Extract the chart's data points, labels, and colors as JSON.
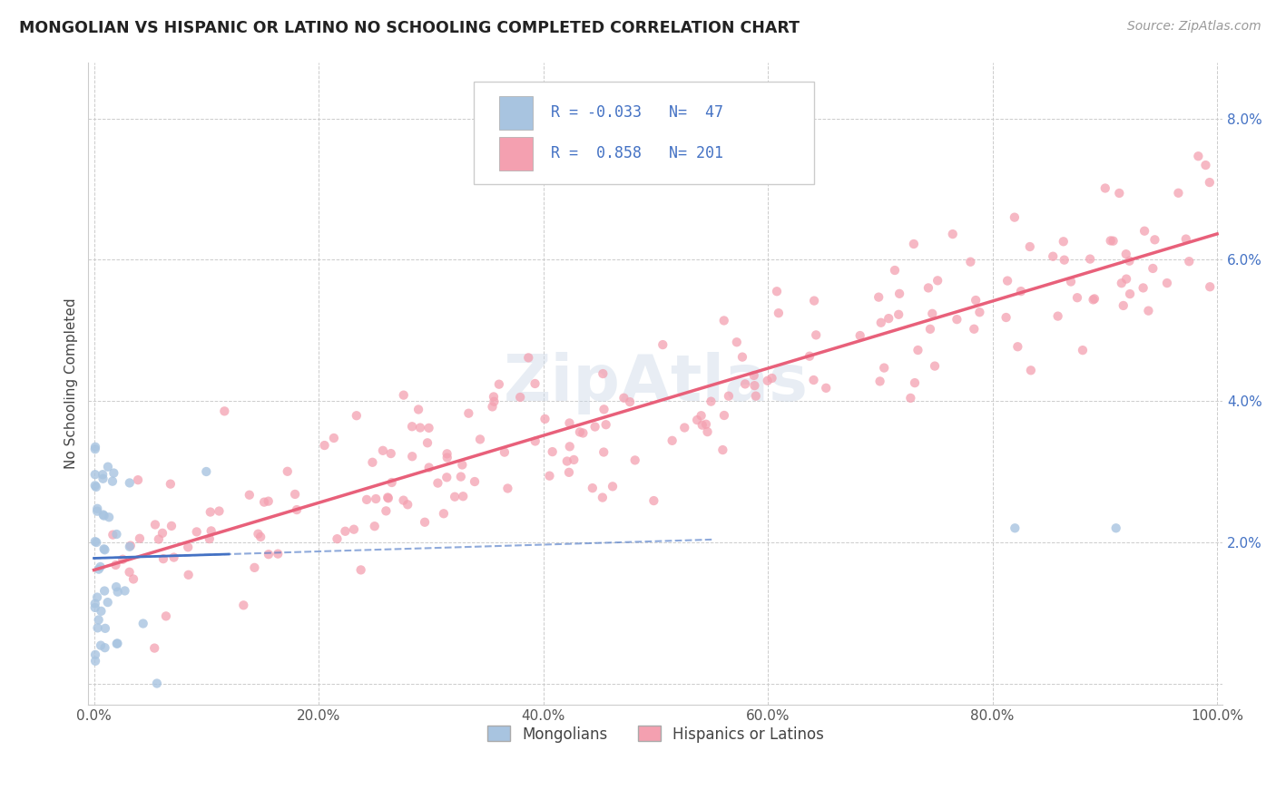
{
  "title": "MONGOLIAN VS HISPANIC OR LATINO NO SCHOOLING COMPLETED CORRELATION CHART",
  "source": "Source: ZipAtlas.com",
  "ylabel": "No Schooling Completed",
  "background_color": "#ffffff",
  "grid_color": "#cccccc",
  "watermark": "ZipAtlas",
  "mongolian_color": "#a8c4e0",
  "hispanic_color": "#f4a0b0",
  "mongolian_line_color": "#4472c4",
  "hispanic_line_color": "#e8607a",
  "mongolian_R": -0.033,
  "mongolian_N": 47,
  "hispanic_R": 0.858,
  "hispanic_N": 201,
  "xlim": [
    -0.005,
    1.005
  ],
  "ylim": [
    -0.003,
    0.088
  ],
  "yticks": [
    0.0,
    0.02,
    0.04,
    0.06,
    0.08
  ],
  "yticklabels": [
    "",
    "2.0%",
    "4.0%",
    "6.0%",
    "8.0%"
  ],
  "xticks": [
    0.0,
    0.2,
    0.4,
    0.6,
    0.8,
    1.0
  ],
  "xticklabels": [
    "0.0%",
    "20.0%",
    "40.0%",
    "60.0%",
    "80.0%",
    "100.0%"
  ]
}
